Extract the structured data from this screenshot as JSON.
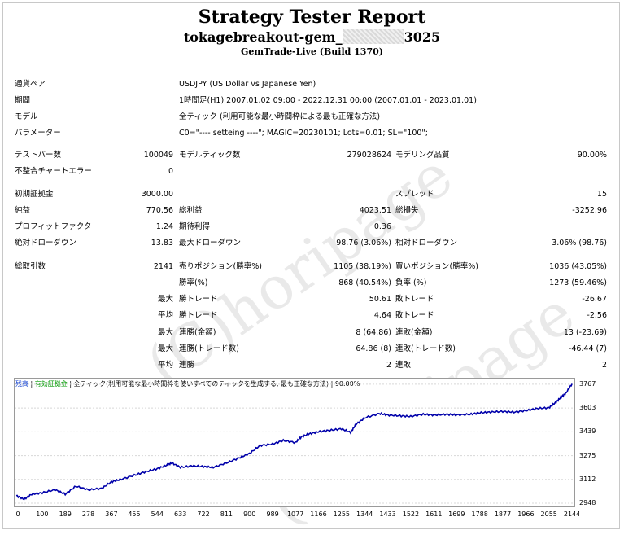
{
  "header": {
    "title": "Strategy Tester Report",
    "ea_name_prefix": "tokagebreakout-gem_",
    "ea_name_suffix": "3025",
    "server": "GemTrade-Live (Build 1370)"
  },
  "info": [
    {
      "label": "通貨ペア",
      "value": "USDJPY (US Dollar vs Japanese Yen)"
    },
    {
      "label": "期間",
      "value": "1時間足(H1) 2007.01.02 09:00 - 2022.12.31 00:00 (2007.01.01 - 2023.01.01)"
    },
    {
      "label": "モデル",
      "value": "全ティック (利用可能な最小時間枠による最も正確な方法)"
    },
    {
      "label": "パラメーター",
      "value": "C0=\"---- setteing ----\"; MAGIC=20230101; Lots=0.01; SL=\"100\";"
    }
  ],
  "rows": [
    {
      "c": [
        [
          "テストバー数",
          "100049"
        ],
        [
          "モデルティック数",
          "279028624"
        ],
        [
          "モデリング品質",
          "90.00%"
        ]
      ]
    },
    {
      "c": [
        [
          "不整合チャートエラー",
          "0"
        ],
        null,
        null
      ]
    },
    {
      "c": [
        [
          "初期証拠金",
          "3000.00"
        ],
        null,
        [
          "スプレッド",
          "15"
        ]
      ]
    },
    {
      "c": [
        [
          "純益",
          "770.56"
        ],
        [
          "総利益",
          "4023.51"
        ],
        [
          "総損失",
          "-3252.96"
        ]
      ]
    },
    {
      "c": [
        [
          "プロフィットファクタ",
          "1.24"
        ],
        [
          "期待利得",
          "0.36"
        ],
        null
      ]
    },
    {
      "c": [
        [
          "絶対ドローダウン",
          "13.83"
        ],
        [
          "最大ドローダウン",
          "98.76 (3.06%)"
        ],
        [
          "相対ドローダウン",
          "3.06% (98.76)"
        ]
      ]
    },
    {
      "c": [
        [
          "総取引数",
          "2141"
        ],
        [
          "売りポジション(勝率%)",
          "1105 (38.19%)"
        ],
        [
          "買いポジション(勝率%)",
          "1036 (43.05%)"
        ]
      ]
    },
    {
      "c": [
        [
          "",
          ""
        ],
        [
          "勝率(%)",
          "868 (40.54%)"
        ],
        [
          "負率 (%)",
          "1273 (59.46%)"
        ]
      ]
    },
    {
      "c": [
        [
          "",
          "最大"
        ],
        [
          "勝トレード",
          "50.61"
        ],
        [
          "敗トレード",
          "-26.67"
        ]
      ]
    },
    {
      "c": [
        [
          "",
          "平均"
        ],
        [
          "勝トレード",
          "4.64"
        ],
        [
          "敗トレード",
          "-2.56"
        ]
      ]
    },
    {
      "c": [
        [
          "",
          "最大"
        ],
        [
          "連勝(金額)",
          "8 (64.86)"
        ],
        [
          "連敗(金額)",
          "13 (-23.69)"
        ]
      ]
    },
    {
      "c": [
        [
          "",
          "最大"
        ],
        [
          "連勝(トレード数)",
          "64.86 (8)"
        ],
        [
          "連敗(トレード数)",
          "-46.44 (7)"
        ]
      ]
    },
    {
      "c": [
        [
          "",
          "平均"
        ],
        [
          "連勝",
          "2"
        ],
        [
          "連敗",
          "2"
        ]
      ]
    }
  ],
  "watermark": "(C)horipage",
  "chart_legend": {
    "balance": "残高",
    "equity": "有効証拠金",
    "model": "全ティック(利用可能な最小時間枠を使いすべてのティックを生成する, 最も正確な方法)",
    "quality": "90.00%",
    "balance_color": "#0033cc",
    "equity_color": "#009900",
    "line_color": "#0000aa"
  },
  "chart_data": {
    "type": "line",
    "title": "",
    "xlabel": "",
    "ylabel": "",
    "x_ticks": [
      0,
      100,
      189,
      278,
      367,
      455,
      544,
      633,
      722,
      811,
      900,
      989,
      1077,
      1166,
      1255,
      1344,
      1433,
      1522,
      1611,
      1699,
      1788,
      1877,
      1966,
      2055,
      2144
    ],
    "y_ticks": [
      2948,
      3112,
      3275,
      3439,
      3603,
      3767
    ],
    "xlim": [
      0,
      2150
    ],
    "ylim": [
      2948,
      3800
    ],
    "series": [
      {
        "x": [
          0,
          30,
          60,
          100,
          150,
          189,
          230,
          278,
          330,
          367,
          400,
          455,
          500,
          544,
          580,
          600,
          633,
          680,
          722,
          760,
          811,
          860,
          900,
          940,
          989,
          1030,
          1077,
          1100,
          1130,
          1166,
          1210,
          1255,
          1290,
          1310,
          1344,
          1400,
          1433,
          1480,
          1522,
          1570,
          1611,
          1660,
          1699,
          1750,
          1788,
          1830,
          1877,
          1920,
          1966,
          2010,
          2055,
          2080,
          2100,
          2120,
          2144
        ],
        "y": [
          3000,
          2975,
          3010,
          3020,
          3040,
          3010,
          3065,
          3040,
          3050,
          3095,
          3110,
          3140,
          3165,
          3185,
          3210,
          3225,
          3195,
          3205,
          3200,
          3195,
          3225,
          3260,
          3290,
          3345,
          3355,
          3380,
          3365,
          3405,
          3425,
          3440,
          3450,
          3460,
          3435,
          3490,
          3535,
          3565,
          3555,
          3550,
          3545,
          3560,
          3555,
          3560,
          3555,
          3560,
          3570,
          3575,
          3580,
          3575,
          3585,
          3600,
          3605,
          3640,
          3675,
          3705,
          3770
        ]
      }
    ]
  }
}
